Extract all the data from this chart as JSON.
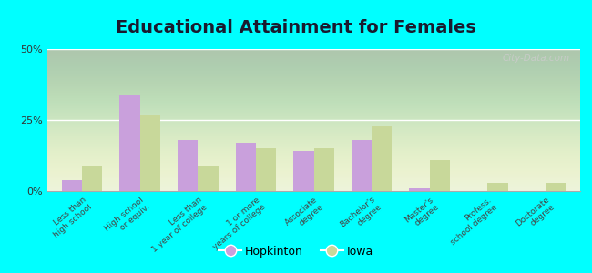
{
  "title": "Educational Attainment for Females",
  "categories": [
    "Less than\nhigh school",
    "High school\nor equiv.",
    "Less than\n1 year of college",
    "1 or more\nyears of college",
    "Associate\ndegree",
    "Bachelor's\ndegree",
    "Master's\ndegree",
    "Profess.\nschool degree",
    "Doctorate\ndegree"
  ],
  "hopkinton_values": [
    4,
    34,
    18,
    17,
    14,
    18,
    1,
    0,
    0
  ],
  "iowa_values": [
    9,
    27,
    9,
    15,
    15,
    23,
    11,
    3,
    3
  ],
  "hopkinton_color": "#c9a0dc",
  "iowa_color": "#c8d89a",
  "background_color": "#00ffff",
  "plot_bg": "#e8f0d8",
  "yticks": [
    0,
    25,
    50
  ],
  "ylim": [
    0,
    50
  ],
  "title_fontsize": 14,
  "legend_labels": [
    "Hopkinton",
    "Iowa"
  ]
}
